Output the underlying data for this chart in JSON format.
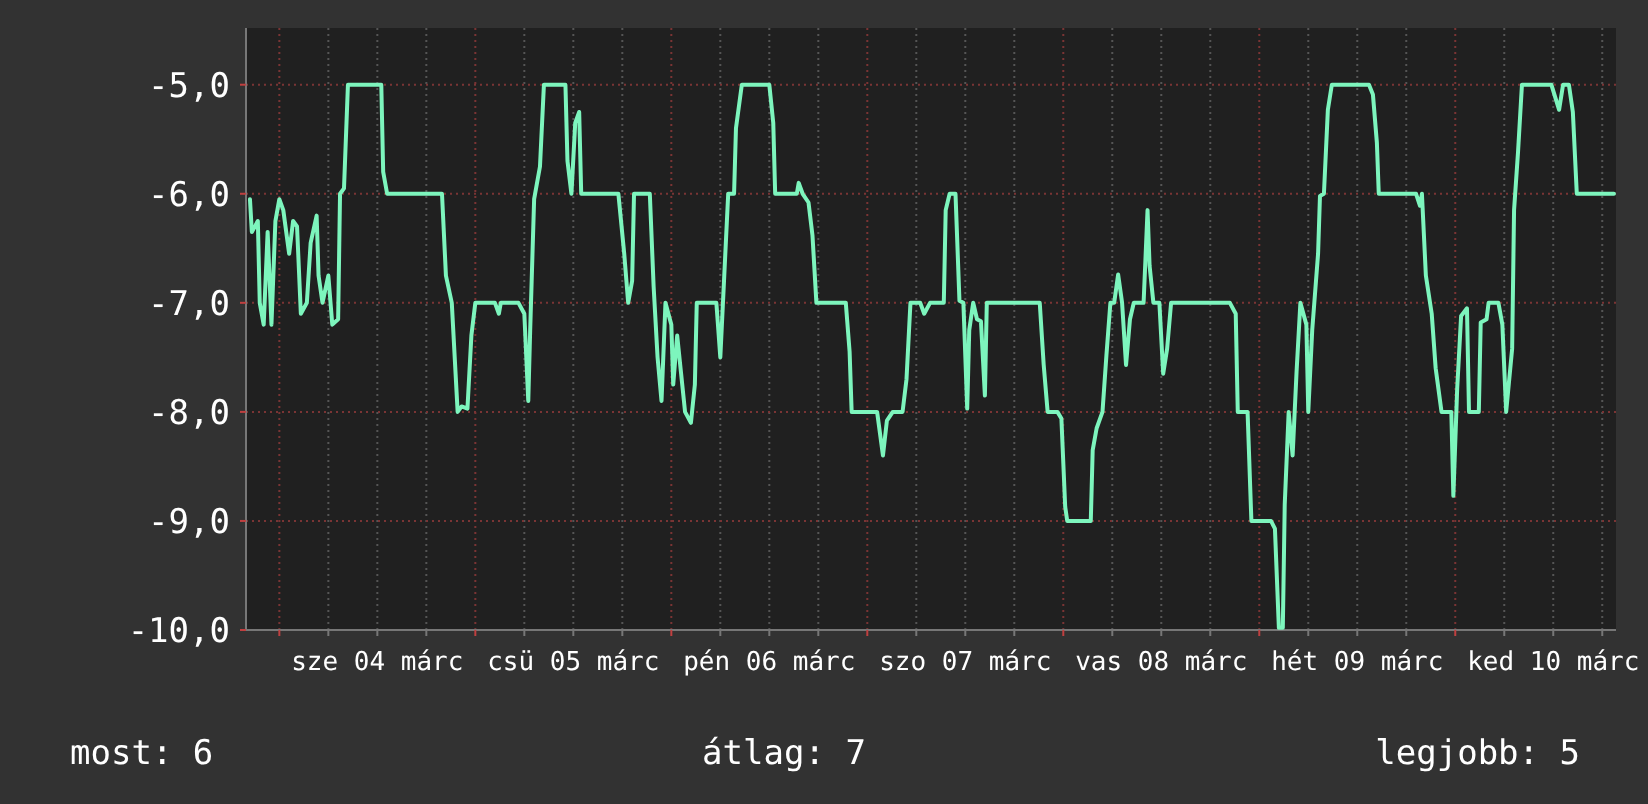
{
  "chart_data": {
    "type": "line",
    "x": [
      "--03-03T20:24",
      "--03-03T20:38",
      "--03-03T21:22",
      "--03-03T21:36",
      "--03-03T22:05",
      "--03-03T22:34",
      "--03-03T23:02",
      "--03-03T23:31",
      "--03-04T00:00",
      "--03-04T00:29",
      "--03-04T01:12",
      "--03-04T01:41",
      "--03-04T02:10",
      "--03-04T02:38",
      "--03-04T03:22",
      "--03-04T03:50",
      "--03-04T04:34",
      "--03-04T04:48",
      "--03-04T05:17",
      "--03-04T06:00",
      "--03-04T06:29",
      "--03-04T07:12",
      "--03-04T07:26",
      "--03-04T07:55",
      "--03-04T08:24",
      "--03-04T12:29",
      "--03-04T12:43",
      "--03-04T13:12",
      "--03-04T19:55",
      "--03-04T20:24",
      "--03-04T21:07",
      "--03-04T21:50",
      "--03-04T22:19",
      "--03-04T23:02",
      "--03-04T23:31",
      "--03-05T00:00",
      "--03-05T02:24",
      "--03-05T02:53",
      "--03-05T03:07",
      "--03-05T05:17",
      "--03-05T06:00",
      "--03-05T06:29",
      "--03-05T06:43",
      "--03-05T07:12",
      "--03-05T07:55",
      "--03-05T08:24",
      "--03-05T11:02",
      "--03-05T11:17",
      "--03-05T11:46",
      "--03-05T12:14",
      "--03-05T12:43",
      "--03-05T12:58",
      "--03-05T17:31",
      "--03-05T18:14",
      "--03-05T18:43",
      "--03-05T19:12",
      "--03-05T19:26",
      "--03-05T21:22",
      "--03-05T21:50",
      "--03-05T22:19",
      "--03-05T22:48",
      "--03-05T23:17",
      "--03-06T00:00",
      "--03-06T00:14",
      "--03-06T00:43",
      "--03-06T01:12",
      "--03-06T01:41",
      "--03-06T02:24",
      "--03-06T02:53",
      "--03-06T03:07",
      "--03-06T05:31",
      "--03-06T06:00",
      "--03-06T06:29",
      "--03-06T06:58",
      "--03-06T07:41",
      "--03-06T07:55",
      "--03-06T08:38",
      "--03-06T12:00",
      "--03-06T12:29",
      "--03-06T12:43",
      "--03-06T15:22",
      "--03-06T15:36",
      "--03-06T16:05",
      "--03-06T16:48",
      "--03-06T17:17",
      "--03-06T17:46",
      "--03-06T21:22",
      "--03-06T21:50",
      "--03-06T22:05",
      "--03-07T01:12",
      "--03-07T01:55",
      "--03-07T02:24",
      "--03-07T03:07",
      "--03-07T04:19",
      "--03-07T04:48",
      "--03-07T05:17",
      "--03-07T06:29",
      "--03-07T06:58",
      "--03-07T07:41",
      "--03-07T09:22",
      "--03-07T09:36",
      "--03-07T10:05",
      "--03-07T10:48",
      "--03-07T11:17",
      "--03-07T11:46",
      "--03-07T12:14",
      "--03-07T12:29",
      "--03-07T12:58",
      "--03-07T13:26",
      "--03-07T13:55",
      "--03-07T14:24",
      "--03-07T14:38",
      "--03-07T21:07",
      "--03-07T21:36",
      "--03-07T22:05",
      "--03-07T23:17",
      "--03-07T23:46",
      "--03-08T00:14",
      "--03-08T00:29",
      "--03-08T03:22",
      "--03-08T03:36",
      "--03-08T04:05",
      "--03-08T04:48",
      "--03-08T05:17",
      "--03-08T05:46",
      "--03-08T06:14",
      "--03-08T06:43",
      "--03-08T07:12",
      "--03-08T07:41",
      "--03-08T08:10",
      "--03-08T08:38",
      "--03-08T09:50",
      "--03-08T10:19",
      "--03-08T10:34",
      "--03-08T11:02",
      "--03-08T11:46",
      "--03-08T12:14",
      "--03-08T12:43",
      "--03-08T13:12",
      "--03-08T20:24",
      "--03-08T21:07",
      "--03-08T21:22",
      "--03-08T22:34",
      "--03-08T23:02",
      "--03-09T01:26",
      "--03-09T01:55",
      "--03-09T02:24",
      "--03-09T02:53",
      "--03-09T03:07",
      "--03-09T03:36",
      "--03-09T04:05",
      "--03-09T04:34",
      "--03-09T05:02",
      "--03-09T05:46",
      "--03-09T06:00",
      "--03-09T06:29",
      "--03-09T07:12",
      "--03-09T07:26",
      "--03-09T07:55",
      "--03-09T08:24",
      "--03-09T08:53",
      "--03-09T13:26",
      "--03-09T13:55",
      "--03-09T14:24",
      "--03-09T14:38",
      "--03-09T19:12",
      "--03-09T19:41",
      "--03-09T19:55",
      "--03-09T20:24",
      "--03-09T21:07",
      "--03-09T21:36",
      "--03-09T22:19",
      "--03-09T23:31",
      "--03-09T23:46",
      "--03-10T00:14",
      "--03-10T00:43",
      "--03-10T01:26",
      "--03-10T01:41",
      "--03-10T02:53",
      "--03-10T03:07",
      "--03-10T03:50",
      "--03-10T04:05",
      "--03-10T05:17",
      "--03-10T05:46",
      "--03-10T06:14",
      "--03-10T06:58",
      "--03-10T07:12",
      "--03-10T07:41",
      "--03-10T08:10",
      "--03-10T11:46",
      "--03-10T12:43",
      "--03-10T13:12",
      "--03-10T13:55",
      "--03-10T14:24",
      "--03-10T14:53",
      "--03-10T19:26"
    ],
    "series": [
      {
        "color": "#7df5bd",
        "values": [
          -6.05,
          -6.35,
          -6.25,
          -7.0,
          -7.2,
          -6.35,
          -7.2,
          -6.25,
          -6.05,
          -6.15,
          -6.55,
          -6.25,
          -6.3,
          -7.1,
          -7.0,
          -6.45,
          -6.2,
          -6.75,
          -7.0,
          -6.75,
          -7.2,
          -7.15,
          -6.0,
          -5.95,
          -5.0,
          -5.0,
          -5.8,
          -6.0,
          -6.0,
          -6.75,
          -7.0,
          -8.0,
          -7.95,
          -7.97,
          -7.3,
          -7.0,
          -7.0,
          -7.1,
          -7.0,
          -7.0,
          -7.1,
          -7.9,
          -7.25,
          -6.05,
          -5.75,
          -5.0,
          -5.0,
          -5.7,
          -6.0,
          -5.35,
          -5.25,
          -6.0,
          -6.0,
          -6.55,
          -7.0,
          -6.8,
          -6.0,
          -6.0,
          -6.85,
          -7.5,
          -7.9,
          -7.0,
          -7.2,
          -7.75,
          -7.3,
          -7.65,
          -8.0,
          -8.1,
          -7.75,
          -7.0,
          -7.0,
          -7.5,
          -6.75,
          -6.0,
          -6.0,
          -5.4,
          -5.0,
          -5.0,
          -5.35,
          -6.0,
          -6.0,
          -5.9,
          -6.0,
          -6.08,
          -6.38,
          -7.0,
          -7.0,
          -7.45,
          -8.0,
          -8.0,
          -8.4,
          -8.08,
          -8.0,
          -8.0,
          -7.7,
          -7.0,
          -7.0,
          -7.1,
          -7.0,
          -7.0,
          -6.15,
          -6.0,
          -6.0,
          -6.98,
          -7.0,
          -7.97,
          -7.25,
          -7.0,
          -7.15,
          -7.17,
          -7.85,
          -7.0,
          -7.0,
          -7.57,
          -8.0,
          -8.0,
          -8.06,
          -8.87,
          -9.0,
          -9.0,
          -8.35,
          -8.15,
          -8.0,
          -7.48,
          -7.0,
          -7.0,
          -6.74,
          -7.0,
          -7.57,
          -7.15,
          -7.0,
          -7.0,
          -6.15,
          -6.66,
          -7.0,
          -7.0,
          -7.65,
          -7.42,
          -7.0,
          -7.0,
          -7.1,
          -8.0,
          -8.0,
          -9.0,
          -9.0,
          -9.07,
          -9.98,
          -9.98,
          -8.85,
          -8.0,
          -8.4,
          -7.63,
          -7.0,
          -7.2,
          -8.0,
          -7.25,
          -6.55,
          -6.02,
          -6.0,
          -5.23,
          -5.0,
          -5.0,
          -5.09,
          -5.53,
          -6.0,
          -6.0,
          -6.11,
          -6.0,
          -6.75,
          -7.1,
          -7.6,
          -8.0,
          -8.0,
          -8.77,
          -7.79,
          -7.12,
          -7.05,
          -8.0,
          -8.0,
          -7.18,
          -7.15,
          -7.0,
          -7.0,
          -7.2,
          -8.0,
          -7.42,
          -6.15,
          -5.62,
          -5.0,
          -5.0,
          -5.23,
          -5.0,
          -5.0,
          -5.25,
          -6.0,
          -6.0
        ]
      }
    ],
    "xlim": [
      "--03-03T19:55",
      "--03-10T19:41"
    ],
    "xticks": [
      {
        "value": "--03-04T00:00",
        "label": null
      },
      {
        "value": "--03-04T06:00",
        "label": null
      },
      {
        "value": "--03-04T12:00",
        "label": "sze 04 márc"
      },
      {
        "value": "--03-04T18:00",
        "label": null
      },
      {
        "value": "--03-05T00:00",
        "label": null
      },
      {
        "value": "--03-05T06:00",
        "label": null
      },
      {
        "value": "--03-05T12:00",
        "label": "csü 05 márc"
      },
      {
        "value": "--03-05T18:00",
        "label": null
      },
      {
        "value": "--03-06T00:00",
        "label": null
      },
      {
        "value": "--03-06T06:00",
        "label": null
      },
      {
        "value": "--03-06T12:00",
        "label": "pén 06 márc"
      },
      {
        "value": "--03-06T18:00",
        "label": null
      },
      {
        "value": "--03-07T00:00",
        "label": null
      },
      {
        "value": "--03-07T06:00",
        "label": null
      },
      {
        "value": "--03-07T12:00",
        "label": "szo 07 márc"
      },
      {
        "value": "--03-07T18:00",
        "label": null
      },
      {
        "value": "--03-08T00:00",
        "label": null
      },
      {
        "value": "--03-08T06:00",
        "label": null
      },
      {
        "value": "--03-08T12:00",
        "label": "vas 08 márc"
      },
      {
        "value": "--03-08T18:00",
        "label": null
      },
      {
        "value": "--03-09T00:00",
        "label": null
      },
      {
        "value": "--03-09T06:00",
        "label": null
      },
      {
        "value": "--03-09T12:00",
        "label": "hét 09 márc"
      },
      {
        "value": "--03-09T18:00",
        "label": null
      },
      {
        "value": "--03-10T00:00",
        "label": null
      },
      {
        "value": "--03-10T06:00",
        "label": null
      },
      {
        "value": "--03-10T12:00",
        "label": "ked 10 márc"
      },
      {
        "value": "--03-10T18:00",
        "label": null
      }
    ],
    "ylim": [
      -10,
      -4.48
    ],
    "yticks": [
      {
        "value": -10,
        "label": "-10,0"
      },
      {
        "value": -9,
        "label": "-9,0"
      },
      {
        "value": -8,
        "label": "-8,0"
      },
      {
        "value": -7,
        "label": "-7,0"
      },
      {
        "value": -6,
        "label": "-6,0"
      },
      {
        "value": -5,
        "label": "-5,0"
      }
    ],
    "grid": true,
    "annotations": [
      "most: 6",
      "átlag: 7",
      "legjobb: 5"
    ]
  }
}
